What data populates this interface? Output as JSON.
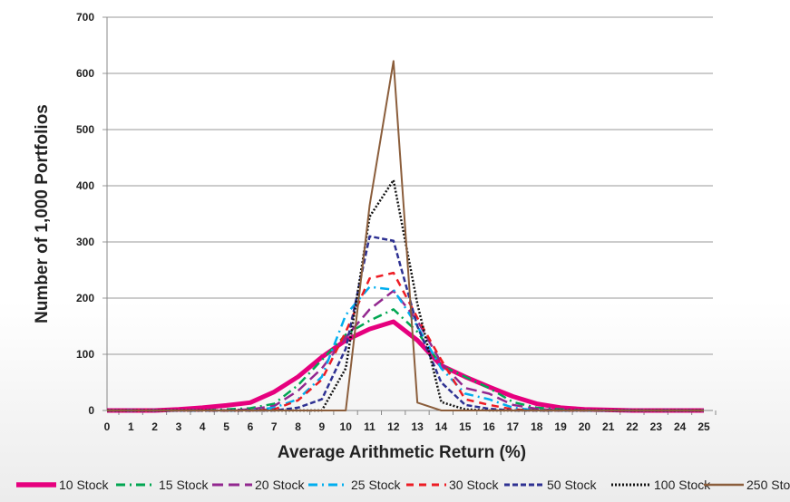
{
  "chart_data": {
    "type": "line",
    "title": "",
    "xlabel": "Average Arithmetic Return (%)",
    "ylabel": "Number of 1,000 Portfolios",
    "x": [
      0,
      1,
      2,
      3,
      4,
      5,
      6,
      7,
      8,
      9,
      10,
      11,
      12,
      13,
      14,
      15,
      16,
      17,
      18,
      19,
      20,
      21,
      22,
      23,
      24,
      25
    ],
    "xlim": [
      0,
      25
    ],
    "ylim": [
      0,
      700
    ],
    "yticks": [
      0,
      100,
      200,
      300,
      400,
      500,
      600,
      700
    ],
    "grid": "horizontal",
    "legend": "bottom",
    "series": [
      {
        "name": "10 Stock",
        "color": "#e6007e",
        "dash": "solid-thick",
        "values": [
          0,
          0,
          0,
          2,
          5,
          9,
          14,
          33,
          60,
          95,
          125,
          145,
          158,
          125,
          80,
          60,
          42,
          25,
          12,
          5,
          2,
          1,
          0,
          0,
          0,
          0
        ]
      },
      {
        "name": "15 Stock",
        "color": "#00a651",
        "dash": "dash-dot",
        "values": [
          0,
          0,
          0,
          0,
          0,
          2,
          4,
          12,
          45,
          90,
          135,
          160,
          180,
          140,
          80,
          60,
          40,
          15,
          5,
          2,
          0,
          0,
          0,
          0,
          0,
          0
        ]
      },
      {
        "name": "20 Stock",
        "color": "#92278f",
        "dash": "long-dash",
        "values": [
          0,
          0,
          0,
          0,
          0,
          0,
          2,
          8,
          35,
          75,
          130,
          180,
          213,
          160,
          85,
          40,
          30,
          10,
          3,
          0,
          0,
          0,
          0,
          0,
          0,
          0
        ]
      },
      {
        "name": "25 Stock",
        "color": "#00aeef",
        "dash": "dash-dot",
        "values": [
          0,
          0,
          0,
          0,
          0,
          0,
          0,
          5,
          20,
          60,
          170,
          220,
          215,
          150,
          75,
          30,
          20,
          5,
          0,
          0,
          0,
          0,
          0,
          0,
          0,
          0
        ]
      },
      {
        "name": "30 Stock",
        "color": "#ed1c24",
        "dash": "dash",
        "values": [
          0,
          0,
          0,
          0,
          0,
          0,
          0,
          2,
          18,
          55,
          140,
          235,
          245,
          165,
          90,
          20,
          10,
          2,
          0,
          0,
          0,
          0,
          0,
          0,
          0,
          0
        ]
      },
      {
        "name": "50 Stock",
        "color": "#2e3192",
        "dash": "short-dash",
        "values": [
          0,
          0,
          0,
          0,
          0,
          0,
          0,
          0,
          5,
          20,
          110,
          310,
          302,
          150,
          50,
          10,
          3,
          0,
          0,
          0,
          0,
          0,
          0,
          0,
          0,
          0
        ]
      },
      {
        "name": "100 Stock",
        "color": "#111111",
        "dash": "dot",
        "values": [
          0,
          0,
          0,
          0,
          0,
          0,
          0,
          0,
          0,
          0,
          75,
          345,
          410,
          190,
          15,
          2,
          0,
          0,
          0,
          0,
          0,
          0,
          0,
          0,
          0,
          0
        ]
      },
      {
        "name": "250 Stock",
        "color": "#8b5e3c",
        "dash": "solid",
        "values": [
          0,
          0,
          0,
          0,
          0,
          0,
          0,
          0,
          0,
          0,
          0,
          365,
          622,
          14,
          0,
          0,
          0,
          0,
          0,
          0,
          0,
          0,
          0,
          0,
          0,
          0
        ]
      }
    ]
  }
}
